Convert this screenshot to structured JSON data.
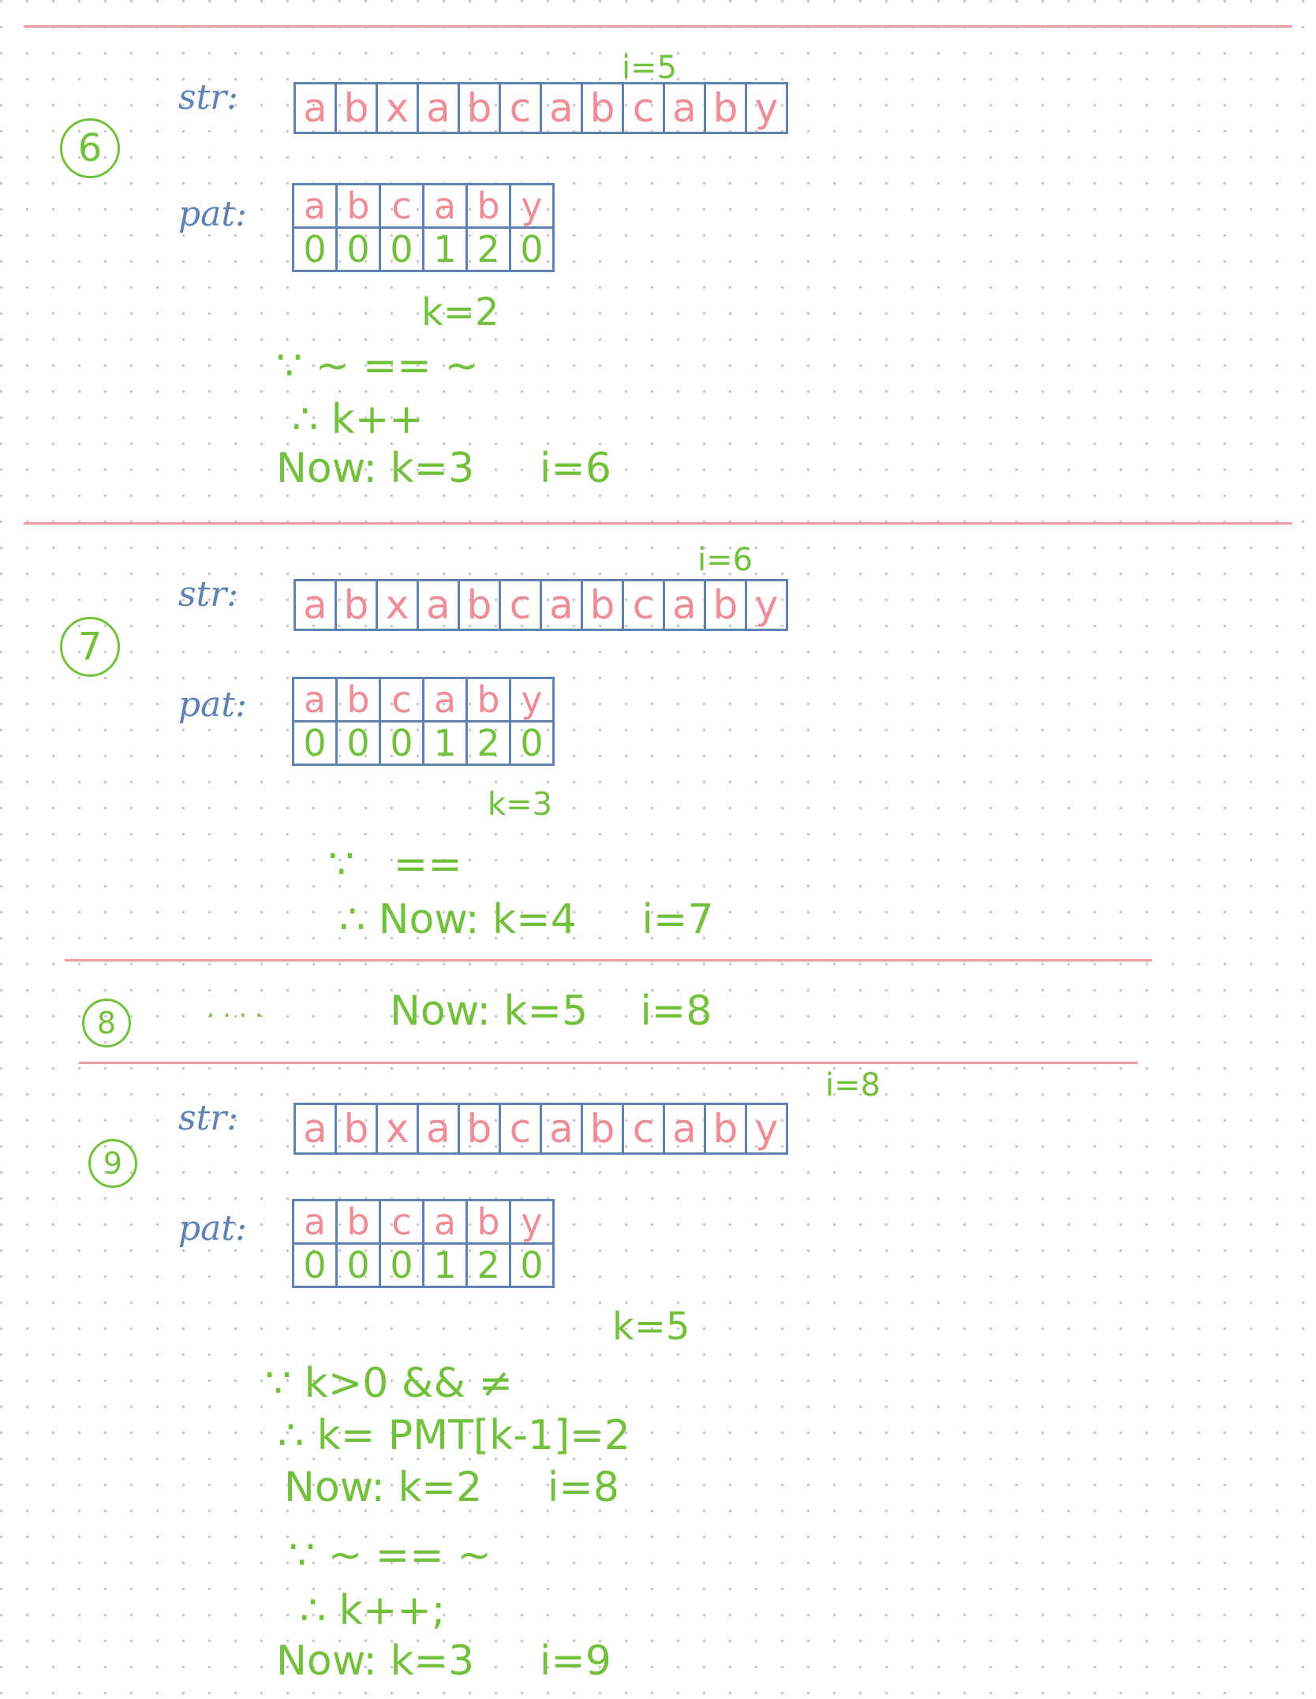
{
  "labels": {
    "str": "str:",
    "pat": "pat:"
  },
  "string_chars": [
    "a",
    "b",
    "x",
    "a",
    "b",
    "c",
    "a",
    "b",
    "c",
    "a",
    "b",
    "y"
  ],
  "pattern_chars": [
    "a",
    "b",
    "c",
    "a",
    "b",
    "y"
  ],
  "pmt_values": [
    "0",
    "0",
    "0",
    "1",
    "2",
    "0"
  ],
  "step6": {
    "num": "6",
    "i_marker": "i=5",
    "k_marker": "k=2",
    "line1": "∵ ~ == ~",
    "line2": "∴ k++",
    "line3": "Now: k=3     i=6"
  },
  "step7": {
    "num": "7",
    "i_marker": "i=6",
    "k_marker": "k=3",
    "line1": "∵   ==",
    "line2": "∴ Now: k=4     i=7"
  },
  "step8": {
    "num": "8",
    "dots": ". . . .",
    "line": "Now: k=5    i=8"
  },
  "step9": {
    "num": "9",
    "i_marker": "i=8",
    "k_marker": "k=5",
    "line1": "∵ k>0 && ≠",
    "line2": "∴ k= PMT[k-1]=2",
    "line3": "Now: k=2     i=8",
    "line4": "∵ ~ == ~",
    "line5": "∴ k++;",
    "line6": "Now: k=3     i=9"
  },
  "colors": {
    "pink": "#ee9aa2",
    "blue": "#5f82b3",
    "green": "#72c03c"
  }
}
